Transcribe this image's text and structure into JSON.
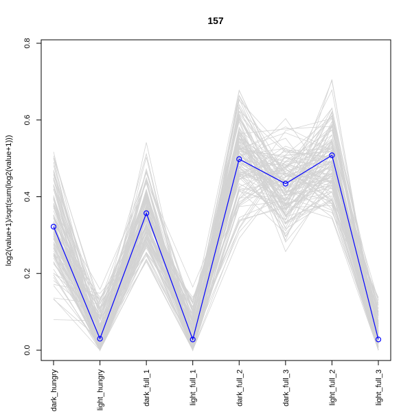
{
  "chart_data": {
    "type": "line",
    "title": "157",
    "xlabel": "",
    "ylabel": "log2(value+1)/sqrt(sum(log2(value+1)))",
    "categories": [
      "dark_hungry",
      "light_hungry",
      "dark_full_1",
      "light_full_1",
      "dark_full_2",
      "dark_full_3",
      "light_full_2",
      "light_full_3"
    ],
    "ylim": [
      0,
      0.8
    ],
    "yticks": [
      0.0,
      0.2,
      0.4,
      0.6,
      0.8
    ],
    "ytick_labels": [
      "0.0",
      "0.2",
      "0.4",
      "0.6",
      "0.8"
    ],
    "grid": false,
    "legend": "none",
    "series": [
      {
        "values": [
          0.322,
          0.03,
          0.357,
          0.028,
          0.498,
          0.434,
          0.508,
          0.028
        ],
        "color": "#0000ff",
        "marker": "open-circle"
      }
    ],
    "background_profiles": {
      "color": "#d3d3d3",
      "count": 120,
      "note_ranges": [
        [
          0.0,
          0.57
        ],
        [
          0.0,
          0.31
        ],
        [
          0.14,
          0.55
        ],
        [
          0.0,
          0.33
        ],
        [
          0.28,
          0.77
        ],
        [
          0.21,
          0.63
        ],
        [
          0.3,
          0.76
        ],
        [
          0.0,
          0.36
        ]
      ]
    }
  }
}
